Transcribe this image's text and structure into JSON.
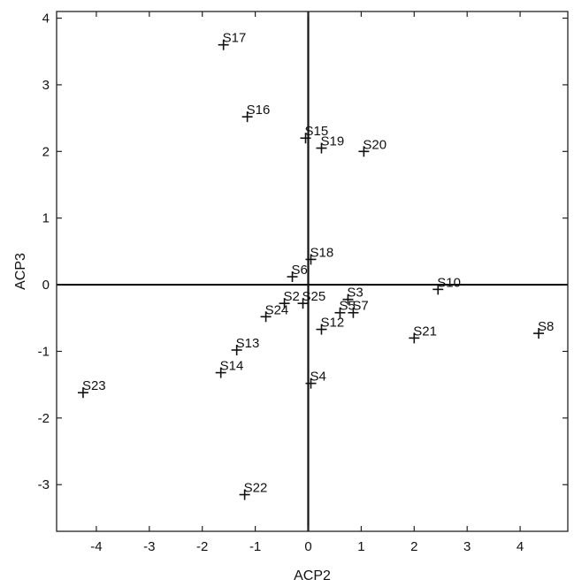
{
  "chart_data": {
    "type": "scatter",
    "xlabel": "ACP2",
    "ylabel": "ACP3",
    "xlim": [
      -4.75,
      4.9
    ],
    "ylim": [
      -3.7,
      4.1
    ],
    "xticks": [
      -4,
      -3,
      -2,
      -1,
      0,
      1,
      2,
      3,
      4
    ],
    "yticks": [
      -3,
      -2,
      -1,
      0,
      1,
      2,
      3,
      4
    ],
    "xtick_labels": [
      "-4",
      "-3",
      "-2",
      "-1",
      "0",
      "1",
      "2",
      "3",
      "4"
    ],
    "ytick_labels": [
      "-3",
      "-2",
      "-1",
      "0",
      "1",
      "2",
      "3",
      "4"
    ],
    "reference_lines": {
      "x": 0,
      "y": 0
    },
    "grid": false,
    "marker": "+",
    "points": [
      {
        "label": "S17",
        "x": -1.6,
        "y": 3.6
      },
      {
        "label": "S16",
        "x": -1.15,
        "y": 2.52
      },
      {
        "label": "S15",
        "x": -0.05,
        "y": 2.2
      },
      {
        "label": "S19",
        "x": 0.25,
        "y": 2.05
      },
      {
        "label": "S20",
        "x": 1.05,
        "y": 2.0
      },
      {
        "label": "S18",
        "x": 0.05,
        "y": 0.38
      },
      {
        "label": "S6",
        "x": -0.3,
        "y": 0.12
      },
      {
        "label": "S10",
        "x": 2.45,
        "y": -0.07
      },
      {
        "label": "S3",
        "x": 0.75,
        "y": -0.22
      },
      {
        "label": "S2",
        "x": -0.45,
        "y": -0.28
      },
      {
        "label": "S25",
        "x": -0.1,
        "y": -0.28
      },
      {
        "label": "S5",
        "x": 0.6,
        "y": -0.42
      },
      {
        "label": "S7",
        "x": 0.85,
        "y": -0.42
      },
      {
        "label": "S24",
        "x": -0.8,
        "y": -0.48
      },
      {
        "label": "S12",
        "x": 0.25,
        "y": -0.67
      },
      {
        "label": "S21",
        "x": 2.0,
        "y": -0.8
      },
      {
        "label": "S8",
        "x": 4.35,
        "y": -0.73
      },
      {
        "label": "S13",
        "x": -1.35,
        "y": -0.98
      },
      {
        "label": "S14",
        "x": -1.65,
        "y": -1.32
      },
      {
        "label": "S4",
        "x": 0.05,
        "y": -1.48
      },
      {
        "label": "S23",
        "x": -4.25,
        "y": -1.62
      },
      {
        "label": "S22",
        "x": -1.2,
        "y": -3.15
      }
    ]
  }
}
